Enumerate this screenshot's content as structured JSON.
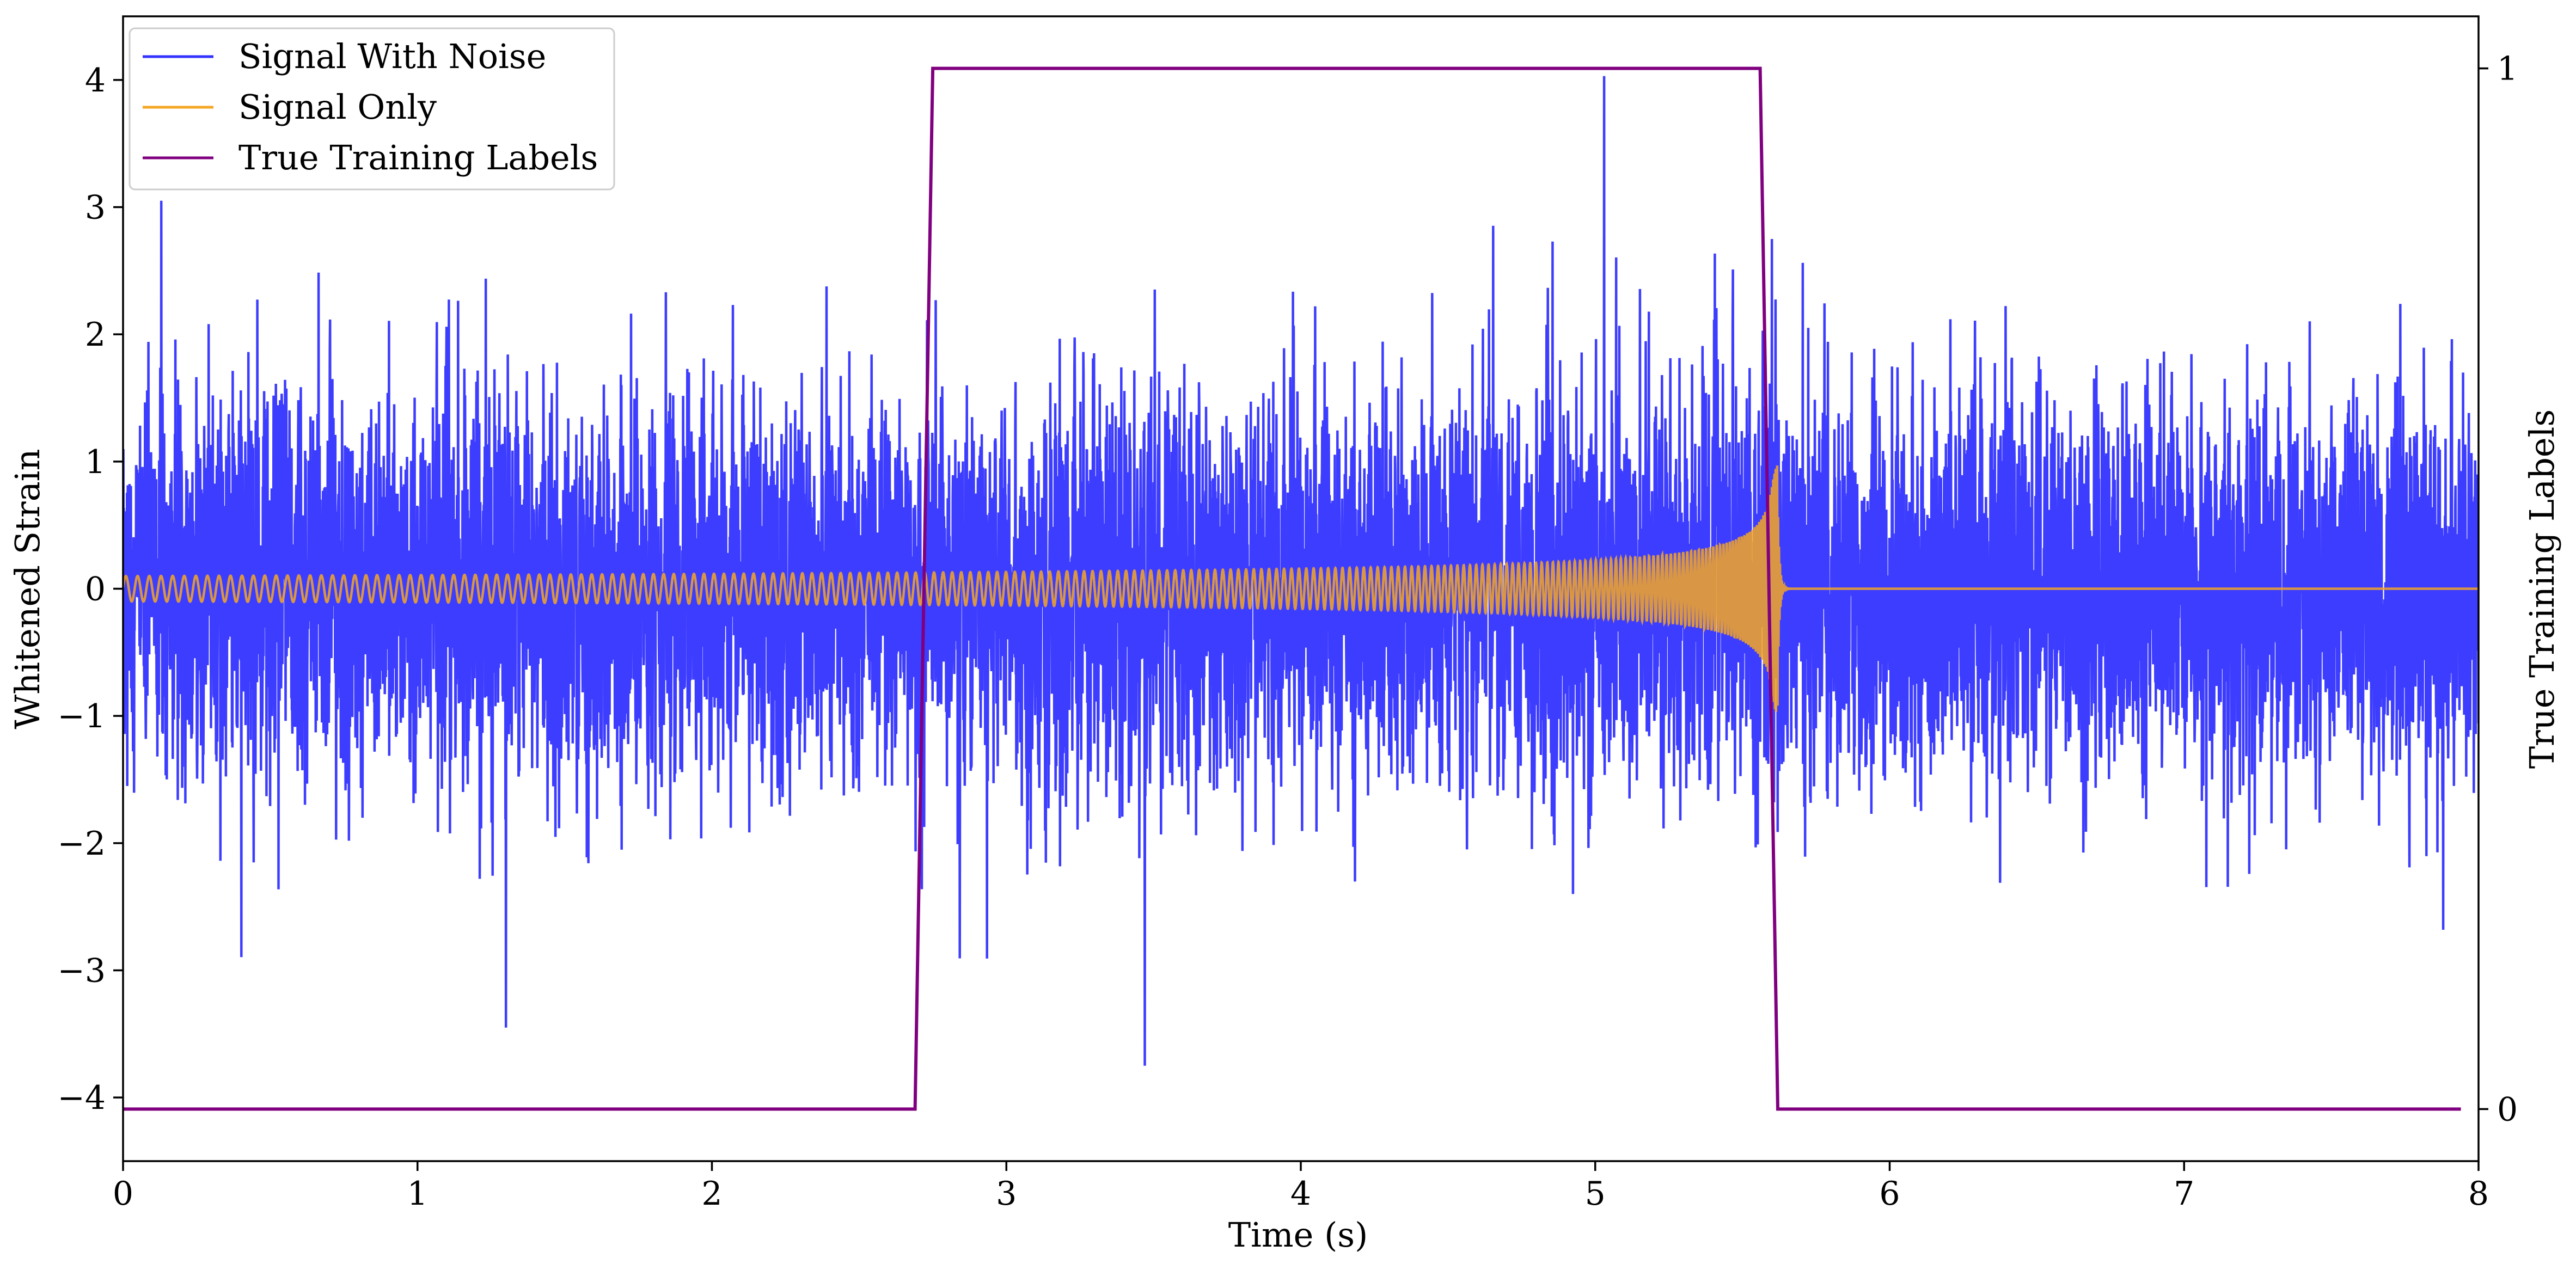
{
  "chart_data": {
    "type": "line",
    "xlabel": "Time (s)",
    "ylabel": "Whitened Strain",
    "y2label": "True Training Labels",
    "xlim": [
      0,
      8
    ],
    "ylim": [
      -4.5,
      4.5
    ],
    "y2lim": [
      -0.05,
      1.05
    ],
    "xticks": [
      0,
      1,
      2,
      3,
      4,
      5,
      6,
      7,
      8
    ],
    "xtick_labels": [
      "0",
      "1",
      "2",
      "3",
      "4",
      "5",
      "6",
      "7",
      "8"
    ],
    "yticks": [
      -4,
      -3,
      -2,
      -1,
      0,
      1,
      2,
      3,
      4
    ],
    "ytick_labels": [
      "−4",
      "−3",
      "−2",
      "−1",
      "0",
      "1",
      "2",
      "3",
      "4"
    ],
    "y2ticks": [
      0,
      1
    ],
    "y2tick_labels": [
      "0",
      "1"
    ],
    "legend_position": "top-left",
    "grid": false,
    "series": [
      {
        "name": "Signal With Noise",
        "axis": "left",
        "color": "#3333ff",
        "description": "white noise, std ~0.75, range about -3.7 to 4.0",
        "noise_std": 0.75,
        "peaks": [
          {
            "x": 0.13,
            "y": 3.05
          },
          {
            "x": 1.3,
            "y": -3.45
          },
          {
            "x": 3.47,
            "y": -3.75
          },
          {
            "x": 5.03,
            "y": 4.03
          }
        ]
      },
      {
        "name": "Signal Only",
        "axis": "left",
        "color": "#f5a623",
        "description": "chirp, amplitude ~0.1 rising to ~1.1 near merger at t=5.62, then zero",
        "merger_time": 5.62,
        "start_amplitude": 0.1,
        "peak_amplitude": 1.15
      },
      {
        "name": "True Training Labels",
        "axis": "right",
        "color": "#800080",
        "x": [
          0,
          2.69,
          2.75,
          5.56,
          5.62,
          7.94
        ],
        "values": [
          0,
          0,
          1,
          1,
          0,
          0
        ]
      }
    ]
  }
}
